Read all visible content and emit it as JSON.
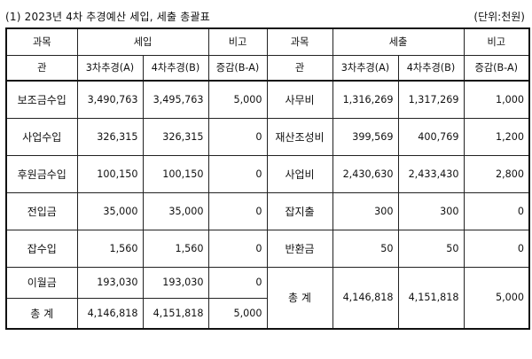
{
  "title": "(1) 2023년 4차 추경예산 세입, 세출 총괄표",
  "unit": "(단위:천원)",
  "header": {
    "category": "과목",
    "revenue": "세입",
    "expenditure": "세출",
    "note": "비고",
    "sub_category": "관",
    "col_3rd": "3차추경(A)",
    "col_4th": "4차추경(B)",
    "col_diff": "증감(B-A)"
  },
  "revenue_rows": [
    {
      "name": "보조금수입",
      "a": "3,490,763",
      "b": "3,495,763",
      "diff": "5,000"
    },
    {
      "name": "사업수입",
      "a": "326,315",
      "b": "326,315",
      "diff": "0"
    },
    {
      "name": "후원금수입",
      "a": "100,150",
      "b": "100,150",
      "diff": "0"
    },
    {
      "name": "전입금",
      "a": "35,000",
      "b": "35,000",
      "diff": "0"
    },
    {
      "name": "잡수입",
      "a": "1,560",
      "b": "1,560",
      "diff": "0"
    },
    {
      "name": "이월금",
      "a": "193,030",
      "b": "193,030",
      "diff": "0"
    }
  ],
  "revenue_total": {
    "name": "총  계",
    "a": "4,146,818",
    "b": "4,151,818",
    "diff": "5,000"
  },
  "expenditure_rows": [
    {
      "name": "사무비",
      "a": "1,316,269",
      "b": "1,317,269",
      "diff": "1,000"
    },
    {
      "name": "재산조성비",
      "a": "399,569",
      "b": "400,769",
      "diff": "1,200"
    },
    {
      "name": "사업비",
      "a": "2,430,630",
      "b": "2,433,430",
      "diff": "2,800"
    },
    {
      "name": "잡지출",
      "a": "300",
      "b": "300",
      "diff": "0"
    },
    {
      "name": "반환금",
      "a": "50",
      "b": "50",
      "diff": "0"
    }
  ],
  "expenditure_total": {
    "name": "총  계",
    "a": "4,146,818",
    "b": "4,151,818",
    "diff": "5,000"
  }
}
